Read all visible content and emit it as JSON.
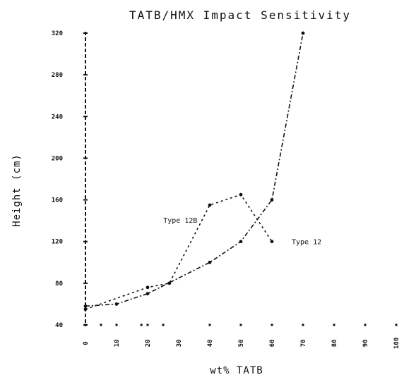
{
  "chart_data": {
    "type": "line",
    "title": "TATB/HMX Impact Sensitivity",
    "xlabel": "wt% TATB",
    "ylabel": "Height (cm)",
    "xlim": [
      0,
      100
    ],
    "ylim": [
      40,
      320
    ],
    "x_ticks": [
      "0",
      "10",
      "20",
      "30",
      "40",
      "50",
      "60",
      "70",
      "80",
      "90",
      "100"
    ],
    "y_ticks": [
      "40",
      "80",
      "120",
      "160",
      "200",
      "240",
      "280",
      "320"
    ],
    "grid": false,
    "series": [
      {
        "name": "Type 12",
        "x": [
          0,
          10,
          20,
          40,
          50,
          60,
          70
        ],
        "y": [
          58,
          60,
          70,
          100,
          120,
          160,
          320
        ]
      },
      {
        "name": "Type 12B",
        "x": [
          0,
          20,
          27,
          40,
          50,
          60
        ],
        "y": [
          55,
          76,
          80,
          155,
          165,
          120
        ]
      }
    ],
    "baseline_dots_x": [
      0,
      5,
      10,
      18,
      20,
      25,
      40,
      50,
      60,
      70,
      80,
      90,
      100
    ]
  }
}
